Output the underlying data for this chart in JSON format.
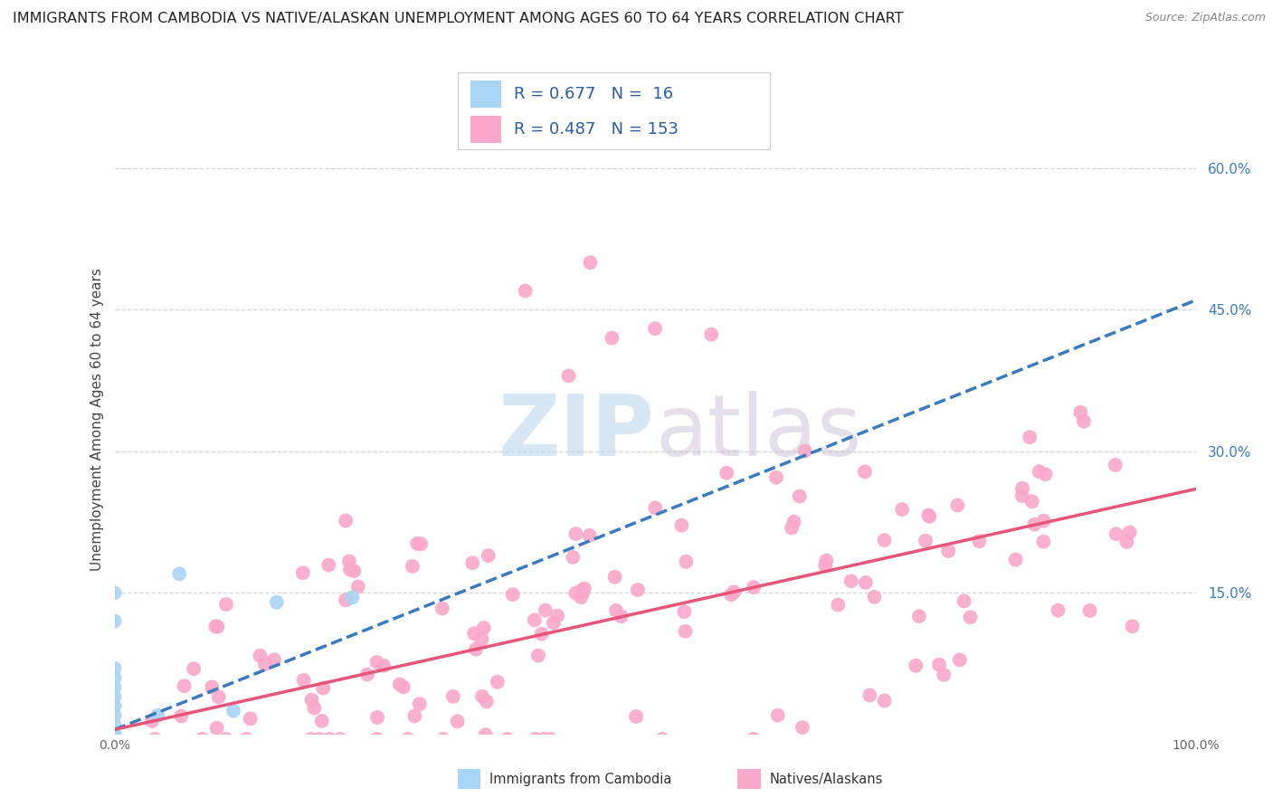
{
  "title": "IMMIGRANTS FROM CAMBODIA VS NATIVE/ALASKAN UNEMPLOYMENT AMONG AGES 60 TO 64 YEARS CORRELATION CHART",
  "source": "Source: ZipAtlas.com",
  "ylabel": "Unemployment Among Ages 60 to 64 years",
  "xlim": [
    0,
    1.0
  ],
  "ylim": [
    0,
    0.667
  ],
  "ytick_labels": [
    "15.0%",
    "30.0%",
    "45.0%",
    "60.0%"
  ],
  "ytick_values": [
    0.15,
    0.3,
    0.45,
    0.6
  ],
  "background_color": "#ffffff",
  "grid_color": "#cccccc",
  "cambodia_color": "#a8d4f5",
  "native_color": "#f9a8c9",
  "trendline_cambodia_color": "#3a7abf",
  "trendline_native_color": "#e8547a",
  "cam_trend_x0": 0.0,
  "cam_trend_x1": 1.0,
  "cam_trend_y0": 0.005,
  "cam_trend_y1": 0.46,
  "nat_trend_x0": 0.0,
  "nat_trend_x1": 1.0,
  "nat_trend_y0": 0.005,
  "nat_trend_y1": 0.26
}
